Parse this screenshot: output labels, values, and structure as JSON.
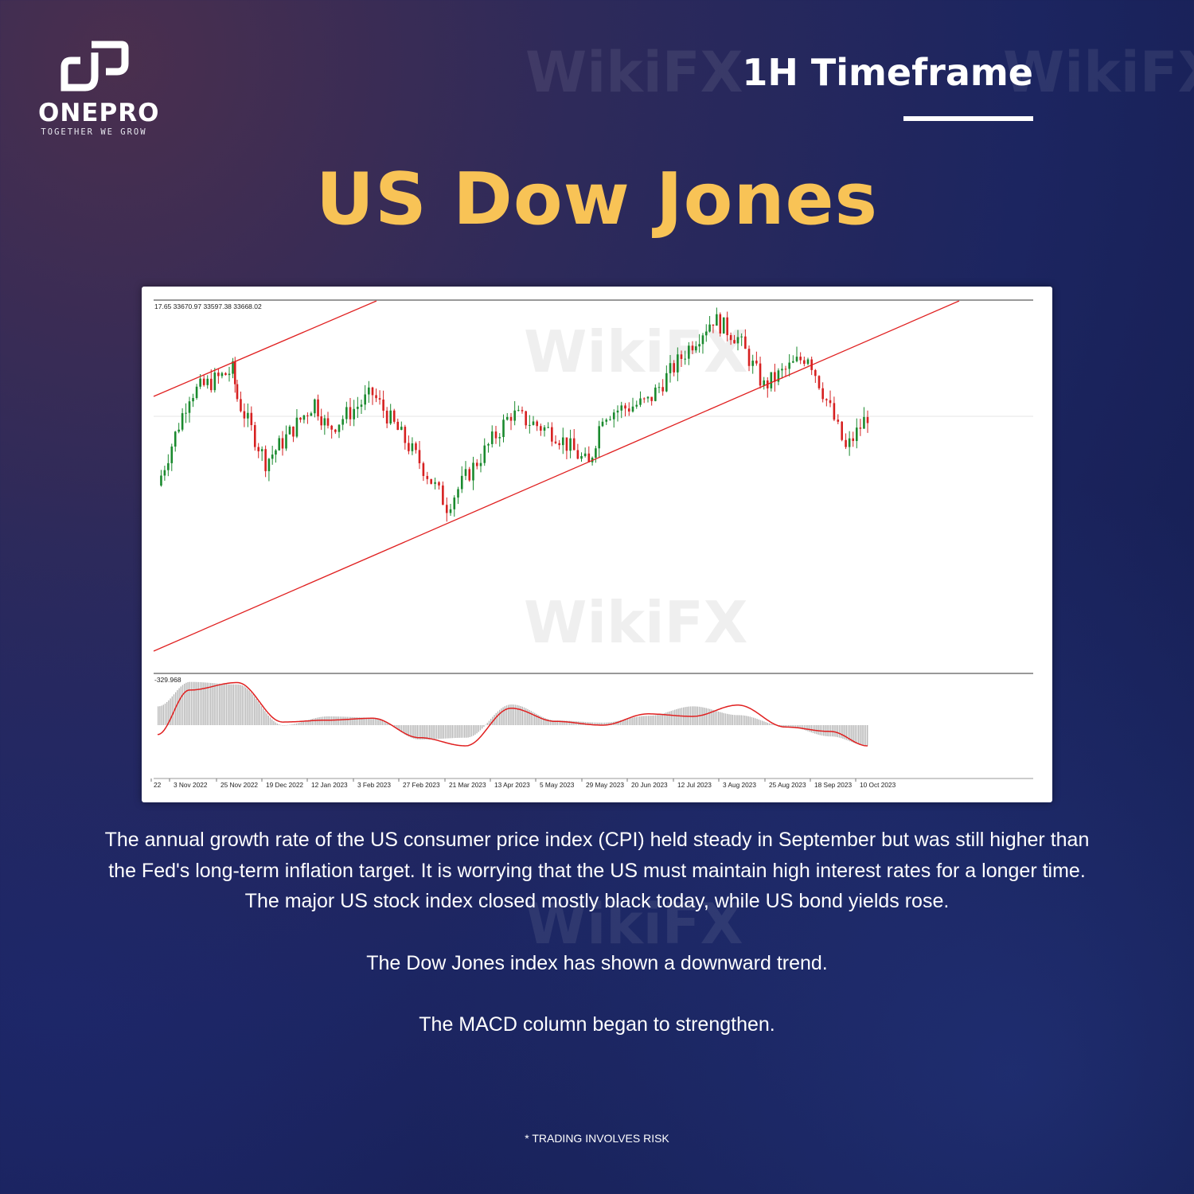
{
  "brand": {
    "name": "ONEPRO",
    "tagline": "TOGETHER WE GROW"
  },
  "timeframe": "1H Timeframe",
  "title": "US Dow Jones",
  "watermark": "WikiFX",
  "colors": {
    "title": "#f8c356",
    "bull": "#1a8a2e",
    "bear": "#d62020",
    "trendline": "#e02020",
    "macd_hist": "#b8b8b8",
    "macd_signal": "#e02020",
    "background": "#1c2560"
  },
  "chart_data": [
    {
      "type": "candlestick",
      "title": "",
      "ohlc_header": "17.65 33670.97 33597.38 33668.02",
      "x_tick_labels": [
        "22",
        "3 Nov 2022",
        "25 Nov 2022",
        "19 Dec 2022",
        "12 Jan 2023",
        "3 Feb 2023",
        "27 Feb 2023",
        "21 Mar 2023",
        "13 Apr 2023",
        "5 May 2023",
        "29 May 2023",
        "20 Jun 2023",
        "12 Jul 2023",
        "3 Aug 2023",
        "25 Aug 2023",
        "18 Sep 2023",
        "10 Oct 2023"
      ],
      "approx_close": [
        [
          "2022-10-25",
          32140
        ],
        [
          "2022-11-03",
          34130
        ],
        [
          "2022-11-23",
          34650
        ],
        [
          "2022-11-25",
          34040
        ],
        [
          "2022-12-10",
          32660
        ],
        [
          "2022-12-19",
          33090
        ],
        [
          "2023-01-05",
          33960
        ],
        [
          "2023-01-12",
          33350
        ],
        [
          "2023-02-03",
          34130
        ],
        [
          "2023-02-27",
          32660
        ],
        [
          "2023-03-12",
          31700
        ],
        [
          "2023-03-21",
          32310
        ],
        [
          "2023-04-13",
          33700
        ],
        [
          "2023-05-05",
          33270
        ],
        [
          "2023-05-22",
          32570
        ],
        [
          "2023-05-29",
          33700
        ],
        [
          "2023-06-20",
          33960
        ],
        [
          "2023-07-12",
          35250
        ],
        [
          "2023-07-22",
          35770
        ],
        [
          "2023-08-03",
          35340
        ],
        [
          "2023-08-15",
          34300
        ],
        [
          "2023-08-25",
          34650
        ],
        [
          "2023-09-06",
          34990
        ],
        [
          "2023-09-18",
          33790
        ],
        [
          "2023-09-28",
          32920
        ],
        [
          "2023-10-12",
          33668.02
        ]
      ],
      "trendlines": "ascending channel (two parallel red lines)",
      "grid": false
    },
    {
      "type": "bar+line",
      "indicator": "MACD",
      "value_label": "-329.968",
      "points": [
        [
          "2022-10-25",
          300,
          -150
        ],
        [
          "2022-11-03",
          690,
          560
        ],
        [
          "2022-11-25",
          650,
          680
        ],
        [
          "2022-12-19",
          0,
          50
        ],
        [
          "2023-01-12",
          140,
          80
        ],
        [
          "2023-02-03",
          120,
          110
        ],
        [
          "2023-02-27",
          -230,
          -200
        ],
        [
          "2023-03-21",
          -200,
          -330
        ],
        [
          "2023-04-13",
          330,
          270
        ],
        [
          "2023-05-05",
          75,
          60
        ],
        [
          "2023-05-29",
          40,
          0
        ],
        [
          "2023-06-20",
          150,
          180
        ],
        [
          "2023-07-12",
          300,
          140
        ],
        [
          "2023-08-03",
          160,
          320
        ],
        [
          "2023-08-25",
          -20,
          -30
        ],
        [
          "2023-09-18",
          -180,
          -100
        ],
        [
          "2023-10-12",
          -330,
          -329.968
        ]
      ],
      "columns": [
        "date",
        "histogram",
        "signal"
      ]
    }
  ],
  "paragraphs": [
    "The annual growth rate of the US consumer price index (CPI) held steady in September but was still higher than the Fed's long-term inflation target. It is worrying that the US must maintain high interest rates for a longer time. The major US stock index closed mostly black today, while US bond yields rose.",
    "The Dow Jones index has shown a downward trend.",
    "The MACD column began to strengthen."
  ],
  "disclaimer": "* TRADING INVOLVES RISK"
}
